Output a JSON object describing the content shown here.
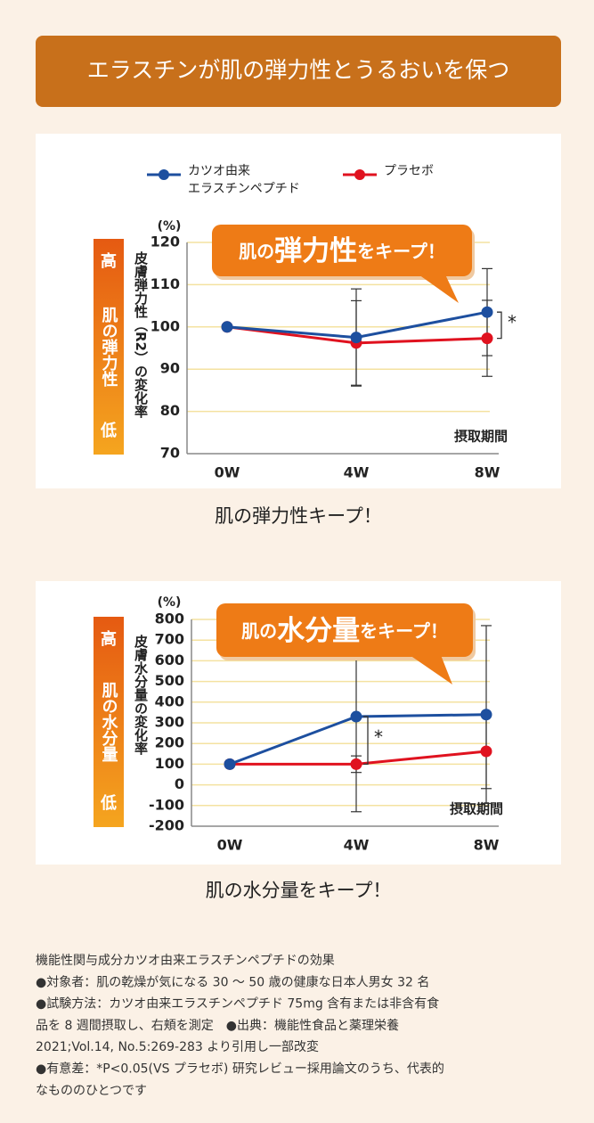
{
  "header": {
    "title": "エラスチンが肌の弾力性とうるおいを保つ"
  },
  "chart_data": [
    {
      "type": "line",
      "unit": "(%)",
      "y_label": "皮膚弾力性（R2）の変化率",
      "x_label": "摂取期間",
      "side_label": {
        "high": "高",
        "name": "肌の弾力性",
        "low": "低"
      },
      "callout": [
        "肌の",
        "弾力性",
        "をキープ！"
      ],
      "caption": "肌の弾力性キープ！",
      "categories": [
        "0W",
        "4W",
        "8W"
      ],
      "series": [
        {
          "name": "カツオ由来\nエラスチンペプチド",
          "color": "#1d4f9f",
          "values": [
            100,
            97.5,
            103.5
          ],
          "errors": [
            null,
            11.5,
            10.3
          ]
        },
        {
          "name": "プラセボ",
          "color": "#e0121f",
          "values": [
            100,
            96.2,
            97.3
          ],
          "errors": [
            null,
            10,
            9
          ]
        }
      ],
      "significance": {
        "category": 2,
        "label": "*"
      },
      "ylim": [
        70,
        120
      ],
      "yticks": [
        70,
        80,
        90,
        100,
        110,
        120
      ],
      "grid": true,
      "legend": "top"
    },
    {
      "type": "line",
      "unit": "(%)",
      "y_label": "皮膚水分量の変化率",
      "x_label": "摂取期間",
      "side_label": {
        "high": "高",
        "name": "肌の水分量",
        "low": "低"
      },
      "callout": [
        "肌の",
        "水分量",
        "をキープ！"
      ],
      "caption": "肌の水分量をキープ！",
      "categories": [
        "0W",
        "4W",
        "8W"
      ],
      "series": [
        {
          "color": "#1d4f9f",
          "values": [
            100,
            330,
            340
          ],
          "errors": [
            null,
            460,
            430
          ]
        },
        {
          "color": "#e0121f",
          "values": [
            100,
            100,
            162
          ],
          "errors": [
            null,
            40,
            180
          ]
        }
      ],
      "significance": {
        "category": 1,
        "label": "*"
      },
      "ylim": [
        -200,
        800
      ],
      "yticks": [
        -200,
        -100,
        0,
        100,
        200,
        300,
        400,
        500,
        600,
        700,
        800
      ],
      "grid": true
    }
  ],
  "footnote": [
    "機能性関与成分カツオ由来エラスチンペプチドの効果",
    "●対象者：肌の乾燥が気になる 30 ～ 50 歳の健康な日本人男女 32 名",
    "●試験方法：カツオ由来エラスチンペプチド 75mg 含有または非含有食",
    "品を 8 週間摂取し、右頬を測定　●出典：機能性食品と薬理栄養",
    "2021;Vol.14, No.5:269-283 より引用し一部改変",
    "●有意差：*P<0.05(VS プラセボ) 研究レビュー採用論文のうち、代表的",
    "なもののひとつです"
  ]
}
